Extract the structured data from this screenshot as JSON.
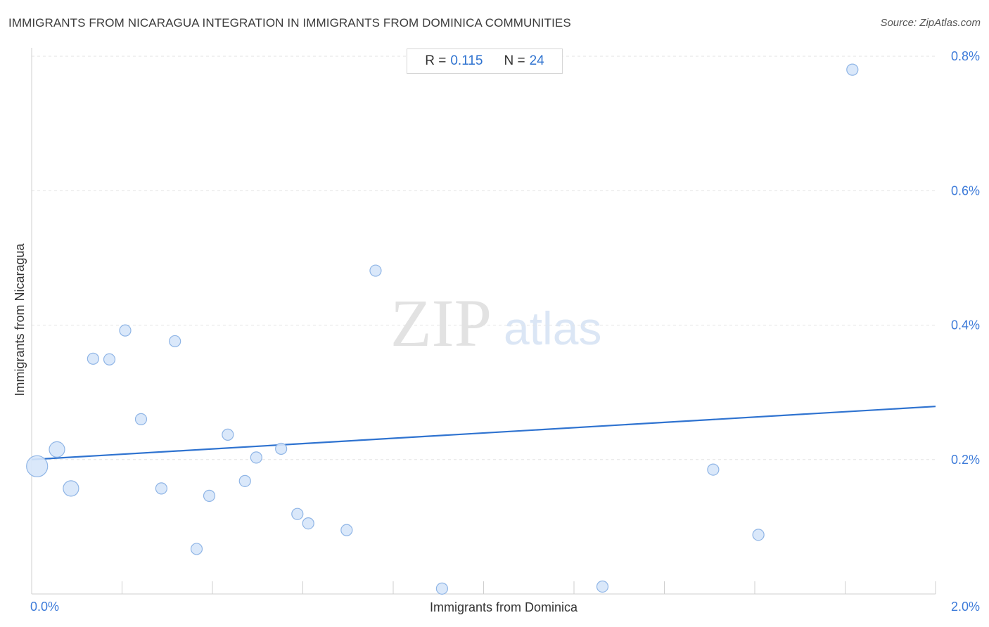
{
  "header": {
    "title": "IMMIGRANTS FROM NICARAGUA INTEGRATION IN IMMIGRANTS FROM DOMINICA COMMUNITIES",
    "source": "Source: ZipAtlas.com"
  },
  "stats": {
    "r_label": "R =",
    "r_value": "0.115",
    "n_label": "N =",
    "n_value": "24"
  },
  "watermark": {
    "zip": "ZIP",
    "atlas": "atlas"
  },
  "colors": {
    "accent": "#2f73d0",
    "point_fill": "#d6e6fa",
    "point_stroke": "#8fb5e6",
    "trend": "#2f73d0"
  },
  "chart_data": {
    "type": "scatter",
    "title": "IMMIGRANTS FROM NICARAGUA INTEGRATION IN IMMIGRANTS FROM DOMINICA COMMUNITIES",
    "xlabel": "Immigrants from Dominica",
    "ylabel": "Immigrants from Nicaragua",
    "xlim": [
      0,
      2.0
    ],
    "ylim": [
      0,
      0.8
    ],
    "x_tick_labels": [
      {
        "value": 0,
        "label": "0.0%"
      },
      {
        "value": 2.0,
        "label": "2.0%"
      }
    ],
    "y_tick_labels": [
      {
        "value": 0.2,
        "label": "0.2%"
      },
      {
        "value": 0.4,
        "label": "0.4%"
      },
      {
        "value": 0.6,
        "label": "0.6%"
      },
      {
        "value": 0.8,
        "label": "0.8%"
      }
    ],
    "grid": "horizontal dashed",
    "points": [
      {
        "x": 0.012,
        "y": 0.19,
        "size": 3
      },
      {
        "x": 0.056,
        "y": 0.215,
        "size": 2
      },
      {
        "x": 0.087,
        "y": 0.157,
        "size": 2
      },
      {
        "x": 0.136,
        "y": 0.35,
        "size": 1
      },
      {
        "x": 0.172,
        "y": 0.349,
        "size": 1
      },
      {
        "x": 0.207,
        "y": 0.392,
        "size": 1
      },
      {
        "x": 0.242,
        "y": 0.26,
        "size": 1
      },
      {
        "x": 0.287,
        "y": 0.157,
        "size": 1
      },
      {
        "x": 0.317,
        "y": 0.376,
        "size": 1
      },
      {
        "x": 0.365,
        "y": 0.067,
        "size": 1
      },
      {
        "x": 0.393,
        "y": 0.146,
        "size": 1
      },
      {
        "x": 0.434,
        "y": 0.237,
        "size": 1
      },
      {
        "x": 0.472,
        "y": 0.168,
        "size": 1
      },
      {
        "x": 0.497,
        "y": 0.203,
        "size": 1
      },
      {
        "x": 0.552,
        "y": 0.216,
        "size": 1
      },
      {
        "x": 0.588,
        "y": 0.119,
        "size": 1
      },
      {
        "x": 0.612,
        "y": 0.105,
        "size": 1
      },
      {
        "x": 0.697,
        "y": 0.095,
        "size": 1
      },
      {
        "x": 0.761,
        "y": 0.481,
        "size": 1
      },
      {
        "x": 0.908,
        "y": 0.008,
        "size": 1
      },
      {
        "x": 1.263,
        "y": 0.011,
        "size": 1
      },
      {
        "x": 1.508,
        "y": 0.185,
        "size": 1
      },
      {
        "x": 1.608,
        "y": 0.088,
        "size": 1
      },
      {
        "x": 1.816,
        "y": 0.78,
        "size": 1
      }
    ],
    "trendline": {
      "x": [
        0,
        2.0
      ],
      "y": [
        0.2,
        0.279
      ]
    }
  }
}
